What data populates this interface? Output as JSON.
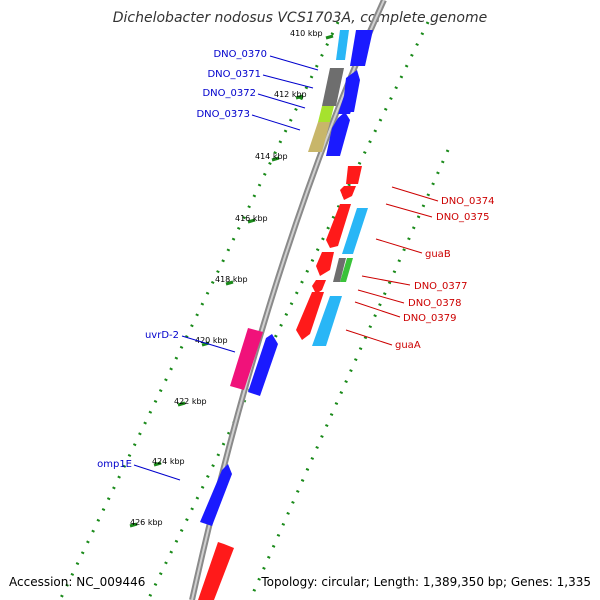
{
  "title": "Dichelobacter nodosus VCS1703A, complete genome",
  "accession_text": "Accession: NC_009446",
  "summary_text": "Topology: circular; Length: 1,389,350 bp; Genes: 1,335",
  "ticks": [
    "410 kbp",
    "412 kbp",
    "414 kbp",
    "416 kbp",
    "418 kbp",
    "420 kbp",
    "422 kbp",
    "424 kbp",
    "426 kbp"
  ],
  "left_genes": [
    "DNO_0370",
    "DNO_0371",
    "DNO_0372",
    "DNO_0373",
    "uvrD-2",
    "omp1E"
  ],
  "right_genes": [
    "DNO_0374",
    "DNO_0375",
    "guaB",
    "DNO_0377",
    "DNO_0378",
    "DNO_0379",
    "guaA"
  ],
  "colors": {
    "forward": "#1a1aff",
    "reverse": "#ff1a1a",
    "cyan": "#29b6f6",
    "gray": "#6e6e6e",
    "olive": "#c8b66a",
    "lime": "#a6e22e",
    "magenta": "#f0127a",
    "green": "#3ac23a",
    "dots": "#1a8a1a",
    "backbone": "#8a8a8a",
    "left_label": "#0000cc",
    "right_label": "#cc0000"
  }
}
